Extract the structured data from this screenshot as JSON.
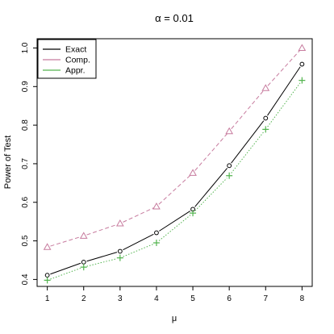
{
  "chart_data": {
    "type": "line",
    "title": "α = 0.01",
    "xlabel": "μ",
    "ylabel": "Power of Test",
    "x": [
      1,
      2,
      3,
      4,
      5,
      6,
      7,
      8
    ],
    "xlim": [
      0.72,
      8.28
    ],
    "ylim": [
      0.382,
      1.024
    ],
    "xticks": [
      "1",
      "2",
      "3",
      "4",
      "5",
      "6",
      "7",
      "8"
    ],
    "yticks": [
      "0.4",
      "0.5",
      "0.6",
      "0.7",
      "0.8",
      "0.9",
      "1.0"
    ],
    "yticks_values": [
      0.4,
      0.5,
      0.6,
      0.7,
      0.8,
      0.9,
      1.0
    ],
    "grid": false,
    "legend_position": "top-left",
    "series": [
      {
        "name": "Exact",
        "color": "#000000",
        "line": "solid",
        "marker": "circle",
        "values": [
          0.411,
          0.445,
          0.473,
          0.521,
          0.582,
          0.695,
          0.818,
          0.958
        ]
      },
      {
        "name": "Comp.",
        "color": "#c77b9e",
        "line": "dashed",
        "marker": "triangle",
        "values": [
          0.484,
          0.513,
          0.545,
          0.589,
          0.676,
          0.784,
          0.896,
          1.0
        ]
      },
      {
        "name": "Appr.",
        "color": "#53b44f",
        "line": "dotted",
        "marker": "plus",
        "values": [
          0.398,
          0.432,
          0.456,
          0.495,
          0.572,
          0.669,
          0.789,
          0.916
        ]
      }
    ]
  }
}
